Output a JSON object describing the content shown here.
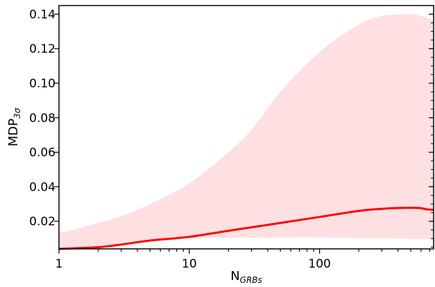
{
  "chart_data": {
    "type": "area",
    "xscale": "log",
    "xlim": [
      1,
      750
    ],
    "ylim": [
      0.004,
      0.145
    ],
    "xlabel": {
      "main": "N",
      "sub": "GRBs"
    },
    "ylabel": {
      "main": "MDP",
      "sub": "3σ"
    },
    "x_ticks": [
      {
        "value": 1,
        "label": "1"
      },
      {
        "value": 10,
        "label": "10"
      },
      {
        "value": 100,
        "label": "100"
      }
    ],
    "y_ticks": [
      {
        "value": 0.02,
        "label": "0.02"
      },
      {
        "value": 0.04,
        "label": "0.04"
      },
      {
        "value": 0.06,
        "label": "0.06"
      },
      {
        "value": 0.08,
        "label": "0.08"
      },
      {
        "value": 0.1,
        "label": "0.10"
      },
      {
        "value": 0.12,
        "label": "0.12"
      },
      {
        "value": 0.14,
        "label": "0.14"
      }
    ],
    "band": {
      "color": "#ffe0e2",
      "x": [
        1,
        2,
        3,
        5,
        10,
        20,
        30,
        50,
        100,
        200,
        300,
        500,
        600,
        750
      ],
      "upper": [
        0.013,
        0.019,
        0.023,
        0.03,
        0.042,
        0.06,
        0.073,
        0.095,
        0.118,
        0.134,
        0.139,
        0.14,
        0.139,
        0.136
      ],
      "lower": [
        0.004,
        0.006,
        0.007,
        0.0085,
        0.01,
        0.0105,
        0.0105,
        0.0105,
        0.0105,
        0.0102,
        0.01,
        0.0098,
        0.0096,
        0.0094
      ]
    },
    "series": [
      {
        "color": "#ff0000",
        "x": [
          1,
          2,
          3,
          5,
          10,
          20,
          30,
          50,
          100,
          200,
          300,
          400,
          500,
          600,
          650,
          750
        ],
        "values": [
          0.004,
          0.005,
          0.0065,
          0.0088,
          0.011,
          0.0145,
          0.0165,
          0.019,
          0.0225,
          0.026,
          0.0272,
          0.0277,
          0.0278,
          0.0276,
          0.027,
          0.0266
        ]
      }
    ]
  }
}
